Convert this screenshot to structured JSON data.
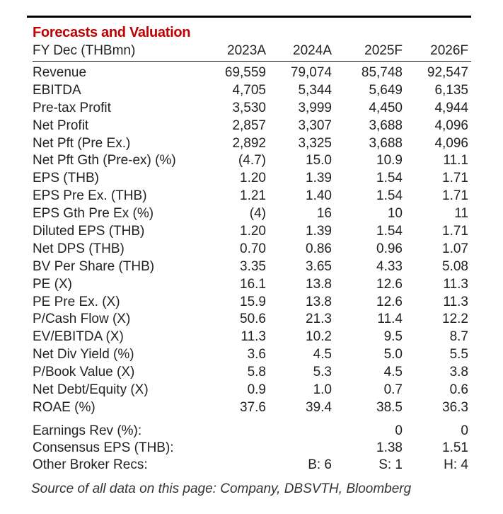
{
  "table": {
    "title": "Forecasts and Valuation",
    "header": {
      "label": "FY Dec (THBmn)",
      "years": [
        "2023A",
        "2024A",
        "2025F",
        "2026F"
      ]
    },
    "rows": [
      {
        "label": "Revenue",
        "values": [
          "69,559",
          "79,074",
          "85,748",
          "92,547"
        ]
      },
      {
        "label": "EBITDA",
        "values": [
          "4,705",
          "5,344",
          "5,649",
          "6,135"
        ]
      },
      {
        "label": "Pre-tax Profit",
        "values": [
          "3,530",
          "3,999",
          "4,450",
          "4,944"
        ]
      },
      {
        "label": "Net Profit",
        "values": [
          "2,857",
          "3,307",
          "3,688",
          "4,096"
        ]
      },
      {
        "label": "Net Pft (Pre Ex.)",
        "values": [
          "2,892",
          "3,325",
          "3,688",
          "4,096"
        ]
      },
      {
        "label": "Net Pft Gth (Pre-ex) (%)",
        "values": [
          "(4.7)",
          "15.0",
          "10.9",
          "11.1"
        ]
      },
      {
        "label": "EPS (THB)",
        "values": [
          "1.20",
          "1.39",
          "1.54",
          "1.71"
        ]
      },
      {
        "label": "EPS Pre Ex. (THB)",
        "values": [
          "1.21",
          "1.40",
          "1.54",
          "1.71"
        ]
      },
      {
        "label": "EPS Gth Pre Ex (%)",
        "values": [
          "(4)",
          "16",
          "10",
          "11"
        ]
      },
      {
        "label": "Diluted EPS (THB)",
        "values": [
          "1.20",
          "1.39",
          "1.54",
          "1.71"
        ]
      },
      {
        "label": "Net DPS (THB)",
        "values": [
          "0.70",
          "0.86",
          "0.96",
          "1.07"
        ]
      },
      {
        "label": "BV Per Share (THB)",
        "values": [
          "3.35",
          "3.65",
          "4.33",
          "5.08"
        ]
      },
      {
        "label": "PE (X)",
        "values": [
          "16.1",
          "13.8",
          "12.6",
          "11.3"
        ]
      },
      {
        "label": "PE Pre Ex. (X)",
        "values": [
          "15.9",
          "13.8",
          "12.6",
          "11.3"
        ]
      },
      {
        "label": "P/Cash Flow (X)",
        "values": [
          "50.6",
          "21.3",
          "11.4",
          "12.2"
        ]
      },
      {
        "label": "EV/EBITDA (X)",
        "values": [
          "11.3",
          "10.2",
          "9.5",
          "8.7"
        ]
      },
      {
        "label": "Net Div Yield (%)",
        "values": [
          "3.6",
          "4.5",
          "5.0",
          "5.5"
        ]
      },
      {
        "label": "P/Book Value (X)",
        "values": [
          "5.8",
          "5.3",
          "4.5",
          "3.8"
        ]
      },
      {
        "label": "Net Debt/Equity (X)",
        "values": [
          "0.9",
          "1.0",
          "0.7",
          "0.6"
        ]
      },
      {
        "label": "ROAE (%)",
        "values": [
          "37.6",
          "39.4",
          "38.5",
          "36.3"
        ]
      }
    ],
    "extra_rows": [
      {
        "label": "Earnings Rev (%):",
        "values": [
          "",
          "",
          "0",
          "0"
        ]
      },
      {
        "label": "Consensus EPS (THB):",
        "values": [
          "",
          "",
          "1.38",
          "1.51"
        ]
      },
      {
        "label": "Other Broker Recs:",
        "values": [
          "",
          "B: 6",
          "S: 1",
          "H: 4"
        ]
      }
    ]
  },
  "source": "Source of all data on this page: Company, DBSVTH, Bloomberg",
  "colors": {
    "title": "#c00000",
    "text": "#222222"
  }
}
